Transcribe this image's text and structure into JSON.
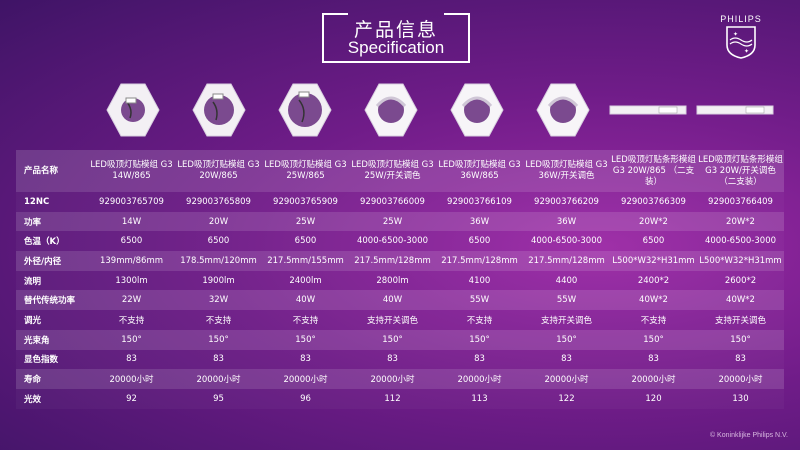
{
  "title": {
    "cn": "产品信息",
    "en": "Specification"
  },
  "brand": {
    "name": "PHILIPS"
  },
  "products": [
    {
      "shape": "hexagon-module"
    },
    {
      "shape": "hexagon-module"
    },
    {
      "shape": "hexagon-module"
    },
    {
      "shape": "hexagon-frosted"
    },
    {
      "shape": "hexagon-frosted"
    },
    {
      "shape": "hexagon-frosted"
    },
    {
      "shape": "strip-module"
    },
    {
      "shape": "strip-module"
    }
  ],
  "table": {
    "rows": [
      {
        "label": "产品名称",
        "cells": [
          "LED吸顶灯贴模组 G3 14W/865",
          "LED吸顶灯贴模组 G3 20W/865",
          "LED吸顶灯贴模组 G3 25W/865",
          "LED吸顶灯贴模组 G3 25W/开关调色",
          "LED吸顶灯贴模组 G3 36W/865",
          "LED吸顶灯贴模组 G3 36W/开关调色",
          "LED吸顶灯贴条形模组 G3 20W/865 （二支装）",
          "LED吸顶灯贴条形模组 G3 20W/开关调色（二支装）"
        ]
      },
      {
        "label": "12NC",
        "cells": [
          "929003765709",
          "929003765809",
          "929003765909",
          "929003766009",
          "929003766109",
          "929003766209",
          "929003766309",
          "929003766409"
        ]
      },
      {
        "label": "功率",
        "cells": [
          "14W",
          "20W",
          "25W",
          "25W",
          "36W",
          "36W",
          "20W*2",
          "20W*2"
        ]
      },
      {
        "label": "色温（K）",
        "cells": [
          "6500",
          "6500",
          "6500",
          "4000-6500-3000",
          "6500",
          "4000-6500-3000",
          "6500",
          "4000-6500-3000"
        ]
      },
      {
        "label": "外径/内径",
        "cells": [
          "139mm/86mm",
          "178.5mm/120mm",
          "217.5mm/155mm",
          "217.5mm/128mm",
          "217.5mm/128mm",
          "217.5mm/128mm",
          "L500*W32*H31mm",
          "L500*W32*H31mm"
        ]
      },
      {
        "label": "流明",
        "cells": [
          "1300lm",
          "1900lm",
          "2400lm",
          "2800lm",
          "4100",
          "4400",
          "2400*2",
          "2600*2"
        ]
      },
      {
        "label": "替代传统功率",
        "cells": [
          "22W",
          "32W",
          "40W",
          "40W",
          "55W",
          "55W",
          "40W*2",
          "40W*2"
        ]
      },
      {
        "label": "调光",
        "cells": [
          "不支持",
          "不支持",
          "不支持",
          "支持开关调色",
          "不支持",
          "支持开关调色",
          "不支持",
          "支持开关调色"
        ]
      },
      {
        "label": "光束角",
        "cells": [
          "150°",
          "150°",
          "150°",
          "150°",
          "150°",
          "150°",
          "150°",
          "150°"
        ]
      },
      {
        "label": "显色指数",
        "cells": [
          "83",
          "83",
          "83",
          "83",
          "83",
          "83",
          "83",
          "83"
        ]
      },
      {
        "label": "寿命",
        "cells": [
          "20000小时",
          "20000小时",
          "20000小时",
          "20000小时",
          "20000小时",
          "20000小时",
          "20000小时",
          "20000小时"
        ]
      },
      {
        "label": "光效",
        "cells": [
          "92",
          "95",
          "96",
          "112",
          "113",
          "122",
          "120",
          "130"
        ]
      }
    ]
  },
  "footer": {
    "copyright": "© Koninklijke Philips N.V."
  },
  "colors": {
    "accent": "#ffffff",
    "background": "#6f1c88"
  }
}
